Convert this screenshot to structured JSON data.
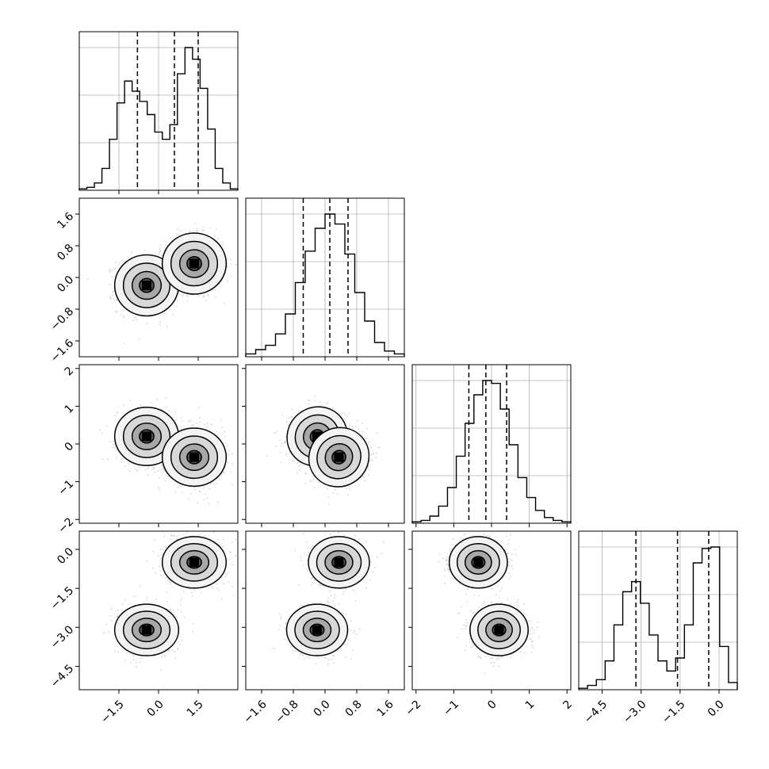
{
  "chart_data": {
    "type": "corner",
    "variables": 4,
    "colors": {
      "line": "#000000",
      "grid": "#b0b0b0",
      "scatter": "#9a9a9a",
      "background": "#ffffff"
    },
    "grid": true,
    "ranges": [
      [
        -3.0,
        3.0
      ],
      [
        -2.0,
        2.0
      ],
      [
        -2.1,
        2.1
      ],
      [
        -5.4,
        0.7
      ]
    ],
    "ticks": [
      {
        "values": [
          -1.5,
          0.0,
          1.5
        ],
        "labels": [
          "−1.5",
          "0.0",
          "1.5"
        ]
      },
      {
        "values": [
          -1.6,
          -0.8,
          0.0,
          0.8,
          1.6
        ],
        "labels": [
          "−1.6",
          "−0.8",
          "0.0",
          "0.8",
          "1.6"
        ]
      },
      {
        "values": [
          -2,
          -1,
          0,
          1,
          2
        ],
        "labels": [
          "−2",
          "−1",
          "0",
          "1",
          "2"
        ]
      },
      {
        "values": [
          -4.5,
          -3.0,
          -1.5,
          0.0
        ],
        "labels": [
          "−4.5",
          "−3.0",
          "−1.5",
          "0.0"
        ]
      }
    ],
    "quantiles": [
      [
        -0.8,
        0.6,
        1.5
      ],
      [
        -0.55,
        0.12,
        0.58
      ],
      [
        -0.6,
        -0.15,
        0.4
      ],
      [
        -3.2,
        -1.6,
        -0.4
      ]
    ],
    "histograms": [
      {
        "values": [
          0.01,
          0.02,
          0.05,
          0.15,
          0.35,
          0.6,
          0.75,
          0.68,
          0.61,
          0.52,
          0.4,
          0.35,
          0.45,
          0.8,
          0.98,
          0.9,
          0.7,
          0.42,
          0.15,
          0.05,
          0.01
        ]
      },
      {
        "values": [
          0.02,
          0.05,
          0.08,
          0.16,
          0.3,
          0.52,
          0.74,
          0.9,
          1.0,
          0.93,
          0.72,
          0.45,
          0.25,
          0.1,
          0.04,
          0.02
        ]
      },
      {
        "values": [
          0.01,
          0.02,
          0.05,
          0.12,
          0.25,
          0.47,
          0.7,
          0.9,
          1.0,
          0.98,
          0.8,
          0.55,
          0.32,
          0.18,
          0.09,
          0.04,
          0.02,
          0.01
        ]
      },
      {
        "values": [
          0.01,
          0.03,
          0.07,
          0.2,
          0.45,
          0.68,
          0.75,
          0.6,
          0.38,
          0.2,
          0.13,
          0.22,
          0.45,
          0.88,
          0.98,
          0.99,
          0.3,
          0.05
        ]
      }
    ],
    "clusters": [
      {
        "means": [
          -0.45,
          -0.2,
          0.2,
          -3.1
        ],
        "weight": 0.5
      },
      {
        "means": [
          1.35,
          0.35,
          -0.35,
          -0.5
        ],
        "weight": 0.5
      }
    ]
  }
}
